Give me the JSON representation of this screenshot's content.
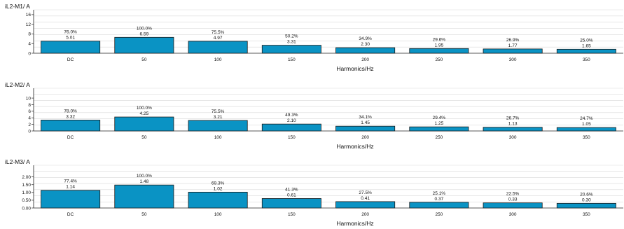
{
  "colors": {
    "bar": "#0a93c4",
    "bar_stroke": "#1a1a1a",
    "grid": "#d9d9d9",
    "axis": "#222222"
  },
  "chart_data": [
    {
      "type": "bar",
      "ylabel": "iL2-M1/ A",
      "xlabel": "Harmonics/Hz",
      "categories": [
        "DC",
        "50",
        "100",
        "150",
        "200",
        "250",
        "300",
        "350"
      ],
      "values": [
        5.01,
        6.59,
        4.97,
        3.31,
        2.3,
        1.95,
        1.77,
        1.65
      ],
      "value_labels": [
        "5.01",
        "6.59",
        "4.97",
        "3.31",
        "2.30",
        "1.95",
        "1.77",
        "1.65"
      ],
      "percent_labels": [
        "76.0%",
        "100.0%",
        "75.5%",
        "50.2%",
        "34.9%",
        "29.6%",
        "26.9%",
        "25.0%"
      ],
      "ylim": [
        0,
        18
      ],
      "yticks": [
        0,
        4,
        8,
        12,
        16
      ],
      "ytick_labels": [
        "0",
        "4",
        "8",
        "12",
        "16"
      ],
      "grid": true
    },
    {
      "type": "bar",
      "ylabel": "iL2-M2/ A",
      "xlabel": "Harmonics/Hz",
      "categories": [
        "DC",
        "50",
        "100",
        "150",
        "200",
        "250",
        "300",
        "350"
      ],
      "values": [
        3.32,
        4.25,
        3.21,
        2.1,
        1.45,
        1.25,
        1.13,
        1.05
      ],
      "value_labels": [
        "3.32",
        "4.25",
        "3.21",
        "2.10",
        "1.45",
        "1.25",
        "1.13",
        "1.05"
      ],
      "percent_labels": [
        "78.0%",
        "100.0%",
        "75.5%",
        "49.3%",
        "34.1%",
        "29.4%",
        "26.7%",
        "24.7%"
      ],
      "ylim": [
        0,
        13
      ],
      "yticks": [
        0,
        2,
        4,
        6,
        8,
        10
      ],
      "ytick_labels": [
        "0",
        "2",
        "4",
        "6",
        "8",
        "10"
      ],
      "grid": true
    },
    {
      "type": "bar",
      "ylabel": "iL2-M3/ A",
      "xlabel": "Harmonics/Hz",
      "categories": [
        "DC",
        "50",
        "100",
        "150",
        "200",
        "250",
        "300",
        "350"
      ],
      "values": [
        1.14,
        1.48,
        1.02,
        0.61,
        0.41,
        0.37,
        0.33,
        0.3
      ],
      "value_labels": [
        "1.14",
        "1.48",
        "1.02",
        "0.61",
        "0.41",
        "0.37",
        "0.33",
        "0.30"
      ],
      "percent_labels": [
        "77.4%",
        "100.0%",
        "69.3%",
        "41.3%",
        "27.5%",
        "25.1%",
        "22.5%",
        "20.6%"
      ],
      "ylim": [
        0,
        2.75
      ],
      "yticks": [
        0,
        0.5,
        1.0,
        1.5,
        2.0
      ],
      "ytick_labels": [
        "0.00",
        "0.50",
        "1.00",
        "1.50",
        "2.00"
      ],
      "grid": true
    }
  ]
}
